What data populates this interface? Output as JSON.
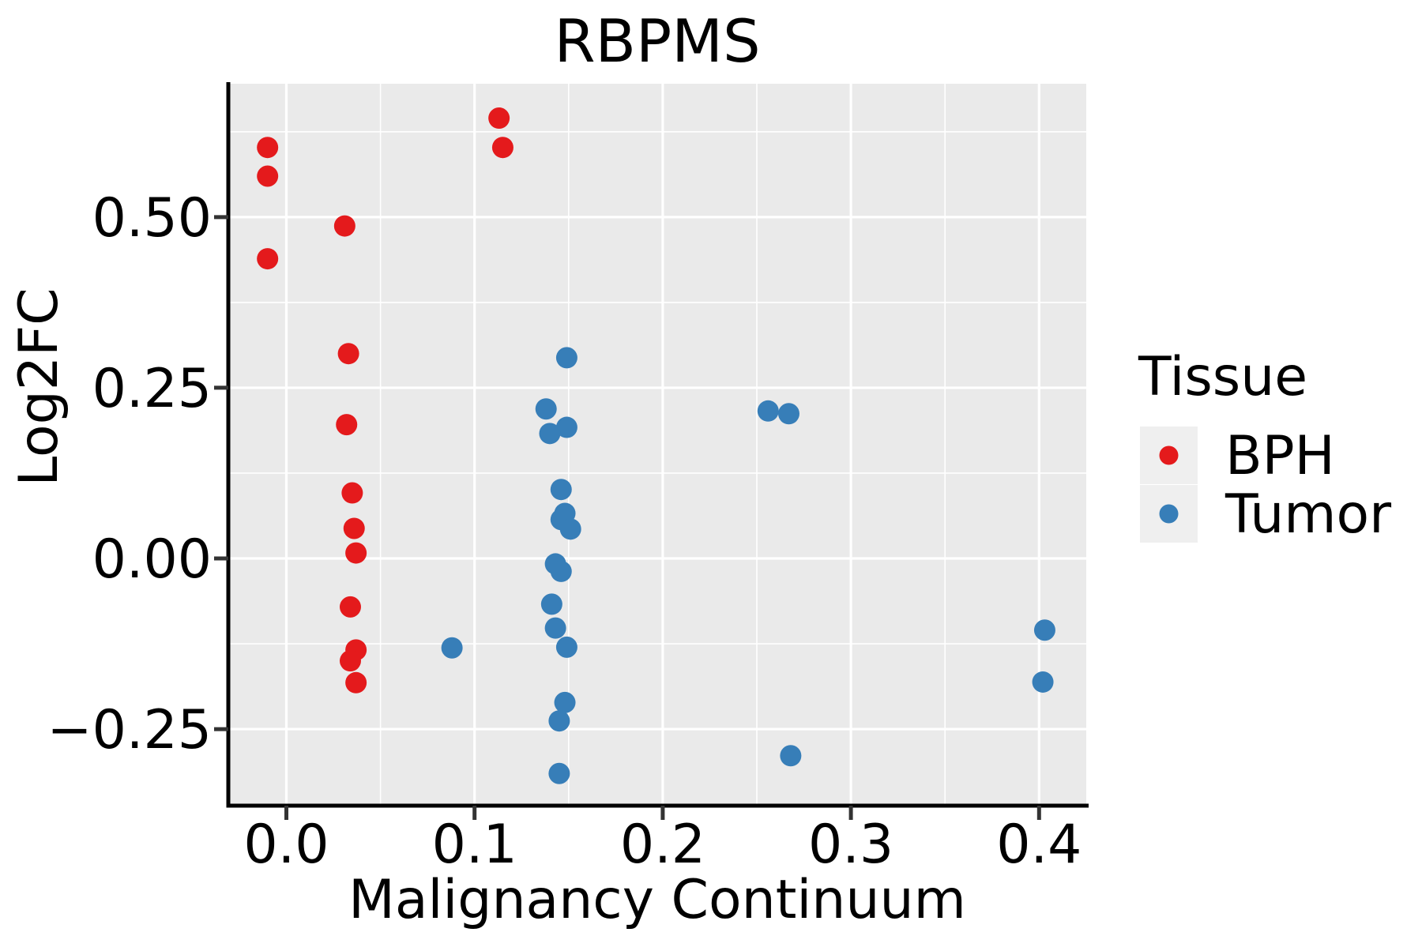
{
  "title": "RBPMS",
  "legend": {
    "title": "Tissue",
    "entries": [
      {
        "label": "BPH",
        "color": "#E41A1C"
      },
      {
        "label": "Tumor",
        "color": "#377EB8"
      }
    ]
  },
  "chart_data": {
    "type": "scatter",
    "title": "RBPMS",
    "xlabel": "Malignancy Continuum",
    "ylabel": "Log2FC",
    "xlim": [
      -0.031,
      0.425
    ],
    "ylim": [
      -0.362,
      0.695
    ],
    "grid": "on",
    "legend_position": "right",
    "panel_bg": "#EAEAEA",
    "grid_color": "#FFFFFF",
    "axis_line_color": "#000000",
    "tick_color": "#333333",
    "x_ticks": [
      {
        "value": 0.0,
        "label": "0.0"
      },
      {
        "value": 0.1,
        "label": "0.1"
      },
      {
        "value": 0.2,
        "label": "0.2"
      },
      {
        "value": 0.3,
        "label": "0.3"
      },
      {
        "value": 0.4,
        "label": "0.4"
      }
    ],
    "y_ticks": [
      {
        "value": 0.5,
        "label": "0.50"
      },
      {
        "value": 0.25,
        "label": "0.25"
      },
      {
        "value": 0.0,
        "label": "0.00"
      },
      {
        "value": -0.25,
        "label": "−0.25"
      }
    ],
    "x_minor_ticks": [
      0.05,
      0.15,
      0.25,
      0.35
    ],
    "y_minor_ticks": [
      0.625,
      0.375,
      0.125,
      -0.125
    ],
    "series": [
      {
        "name": "BPH",
        "color": "#E41A1C",
        "points": [
          [
            -0.01,
            0.602
          ],
          [
            -0.01,
            0.56
          ],
          [
            -0.01,
            0.439
          ],
          [
            0.113,
            0.645
          ],
          [
            0.115,
            0.602
          ],
          [
            0.031,
            0.487
          ],
          [
            0.033,
            0.3
          ],
          [
            0.032,
            0.196
          ],
          [
            0.035,
            0.096
          ],
          [
            0.036,
            0.044
          ],
          [
            0.037,
            0.008
          ],
          [
            0.034,
            -0.071
          ],
          [
            0.037,
            -0.134
          ],
          [
            0.034,
            -0.15
          ],
          [
            0.037,
            -0.182
          ]
        ]
      },
      {
        "name": "Tumor",
        "color": "#377EB8",
        "points": [
          [
            0.149,
            0.294
          ],
          [
            0.138,
            0.219
          ],
          [
            0.149,
            0.192
          ],
          [
            0.14,
            0.183
          ],
          [
            0.256,
            0.216
          ],
          [
            0.267,
            0.212
          ],
          [
            0.146,
            0.101
          ],
          [
            0.148,
            0.066
          ],
          [
            0.146,
            0.057
          ],
          [
            0.151,
            0.043
          ],
          [
            0.143,
            -0.008
          ],
          [
            0.146,
            -0.019
          ],
          [
            0.141,
            -0.067
          ],
          [
            0.143,
            -0.102
          ],
          [
            0.149,
            -0.13
          ],
          [
            0.088,
            -0.131
          ],
          [
            0.148,
            -0.211
          ],
          [
            0.145,
            -0.238
          ],
          [
            0.145,
            -0.315
          ],
          [
            0.268,
            -0.289
          ],
          [
            0.403,
            -0.105
          ],
          [
            0.402,
            -0.181
          ]
        ]
      }
    ]
  }
}
